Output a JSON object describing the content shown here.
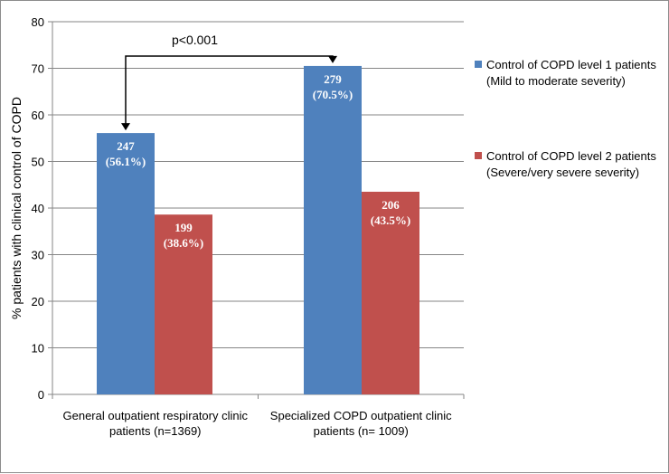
{
  "chart_data": {
    "type": "bar",
    "ylabel": "% patients with clinical control of COPD",
    "ylim": [
      0,
      80
    ],
    "yticks": [
      0,
      10,
      20,
      30,
      40,
      50,
      60,
      70,
      80
    ],
    "grid": true,
    "legend_position": "right",
    "categories": [
      [
        "General outpatient respiratory clinic",
        "patients (n=1369)"
      ],
      [
        "Specialized COPD outpatient clinic",
        "patients (n= 1009)"
      ]
    ],
    "series": [
      {
        "name": [
          "Control of COPD level 1 patients",
          "(Mild to moderate severity)"
        ],
        "color": "#4f81bd",
        "values": [
          56.1,
          70.5
        ],
        "data_labels": [
          [
            "247",
            "(56.1%)"
          ],
          [
            "279",
            "(70.5%)"
          ]
        ]
      },
      {
        "name": [
          "Control of COPD level 2 patients",
          "(Severe/very severe severity)"
        ],
        "color": "#c0504d",
        "values": [
          38.6,
          43.5
        ],
        "data_labels": [
          [
            "199",
            "(38.6%)"
          ],
          [
            "206",
            "(43.5%)"
          ]
        ]
      }
    ],
    "annotation": {
      "text": "p<0.001"
    }
  }
}
